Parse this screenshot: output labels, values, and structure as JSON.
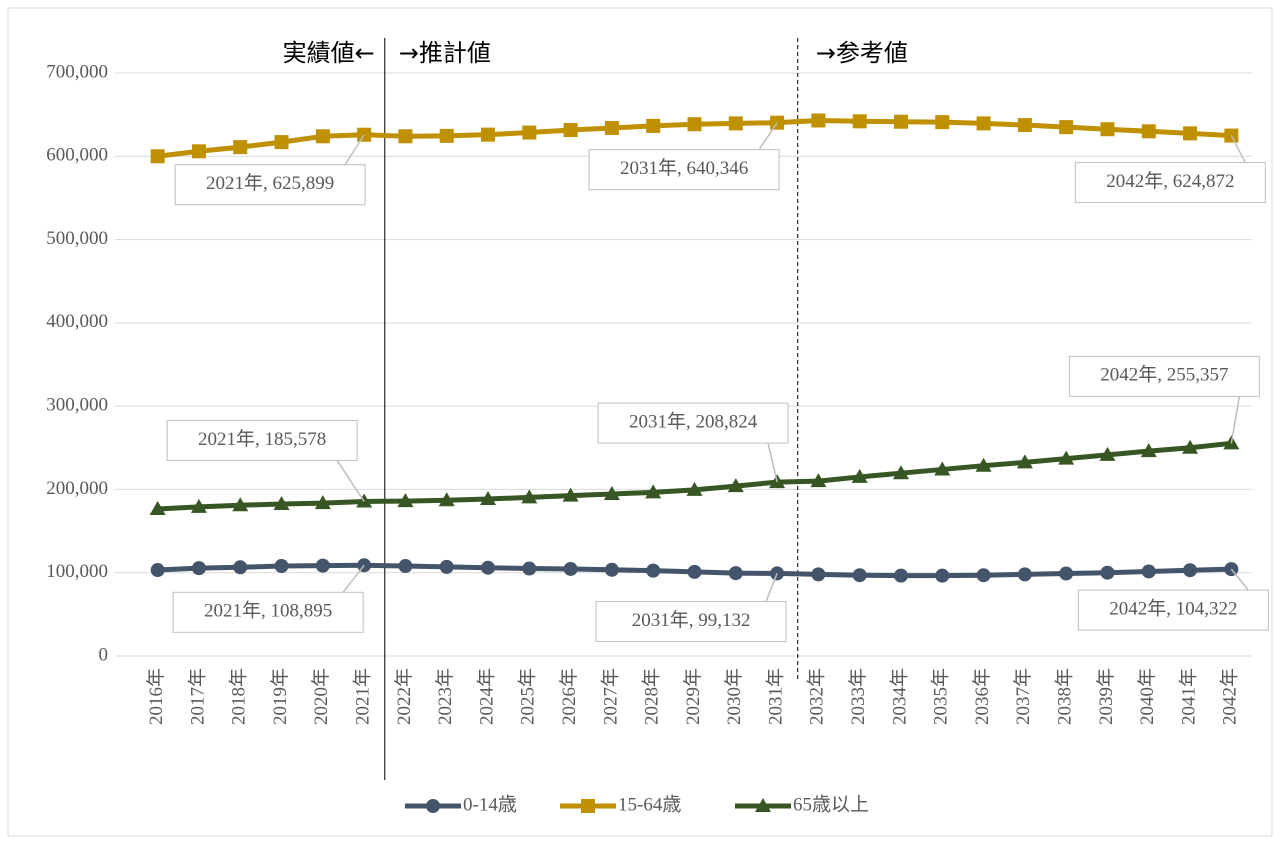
{
  "chart_data": {
    "type": "line",
    "categories": [
      "2016年",
      "2017年",
      "2018年",
      "2019年",
      "2020年",
      "2021年",
      "2022年",
      "2023年",
      "2024年",
      "2025年",
      "2026年",
      "2027年",
      "2028年",
      "2029年",
      "2030年",
      "2031年",
      "2032年",
      "2033年",
      "2034年",
      "2035年",
      "2036年",
      "2037年",
      "2038年",
      "2039年",
      "2040年",
      "2041年",
      "2042年"
    ],
    "series": [
      {
        "name": "0-14歳",
        "color": "#44546a",
        "marker": "circle",
        "values": [
          103200,
          105500,
          106500,
          108000,
          108500,
          108895,
          108000,
          107000,
          106000,
          105000,
          104500,
          103500,
          102500,
          101000,
          99500,
          99132,
          98000,
          97000,
          96500,
          96500,
          97000,
          98000,
          99000,
          100000,
          101500,
          103000,
          104322
        ],
        "value_labels": [
          null,
          null,
          null,
          null,
          null,
          "2021年, 108,895",
          null,
          null,
          null,
          null,
          null,
          null,
          null,
          null,
          null,
          "2031年, 99,132",
          null,
          null,
          null,
          null,
          null,
          null,
          null,
          null,
          null,
          null,
          "2042年, 104,322"
        ]
      },
      {
        "name": "15-64歳",
        "color": "#bf9000",
        "marker": "square",
        "values": [
          600000,
          606000,
          611000,
          617000,
          624000,
          625899,
          624000,
          624500,
          626000,
          628500,
          631500,
          634000,
          636500,
          638500,
          639500,
          640346,
          643000,
          642000,
          641500,
          641000,
          639500,
          637500,
          635000,
          632500,
          630000,
          627500,
          624872
        ],
        "value_labels": [
          null,
          null,
          null,
          null,
          null,
          "2021年, 625,899",
          null,
          null,
          null,
          null,
          null,
          null,
          null,
          null,
          null,
          "2031年, 640,346",
          null,
          null,
          null,
          null,
          null,
          null,
          null,
          null,
          null,
          null,
          "2042年, 624,872"
        ]
      },
      {
        "name": "65歳以上",
        "color": "#375623",
        "marker": "triangle",
        "values": [
          176500,
          179000,
          181000,
          182500,
          183500,
          185578,
          186000,
          187000,
          188500,
          190500,
          192500,
          194500,
          196500,
          199500,
          204000,
          208824,
          210000,
          215000,
          219500,
          224000,
          228500,
          232500,
          237000,
          241500,
          246000,
          250000,
          255357
        ],
        "value_labels": [
          null,
          null,
          null,
          null,
          null,
          "2021年, 185,578",
          null,
          null,
          null,
          null,
          null,
          null,
          null,
          null,
          null,
          "2031年, 208,824",
          null,
          null,
          null,
          null,
          null,
          null,
          null,
          null,
          null,
          null,
          "2042年, 255,357"
        ]
      }
    ],
    "annotations": [
      "実績値←",
      "→推計値",
      "→参考値"
    ],
    "ylim": [
      0,
      700000
    ],
    "yticks": [
      0,
      {
        "value": 100000,
        "label": "100,000"
      },
      {
        "value": 200000,
        "label": "200,000"
      },
      {
        "value": 300000,
        "label": "300,000"
      },
      {
        "value": 400000,
        "label": "400,000"
      },
      {
        "value": 500000,
        "label": "500,000"
      },
      {
        "value": 600000,
        "label": "600,000"
      },
      {
        "value": 700000,
        "label": "700,000"
      }
    ],
    "grid": true,
    "legend": "bottom"
  }
}
